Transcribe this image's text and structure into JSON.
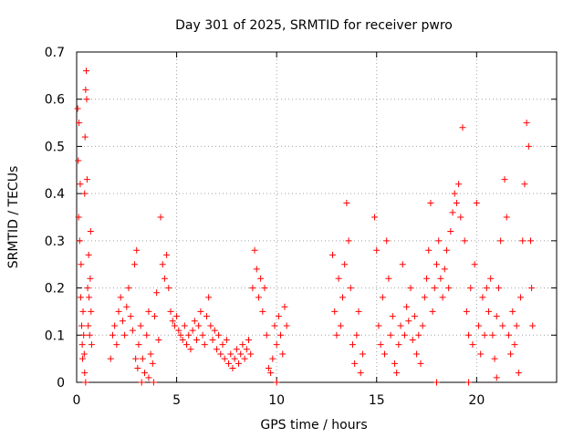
{
  "chart_data": {
    "type": "scatter",
    "title": "Day 301 of 2025, SRMTID for receiver pwro",
    "xlabel": "GPS time / hours",
    "ylabel": "SRMTID / TECUs",
    "xlim": [
      0,
      24
    ],
    "ylim": [
      0,
      0.7
    ],
    "xticks": [
      0,
      5,
      10,
      15,
      20
    ],
    "yticks": [
      0,
      0.1,
      0.2,
      0.3,
      0.4,
      0.5,
      0.6,
      0.7
    ],
    "xtick_labels": [
      "0",
      "5",
      "10",
      "15",
      "20"
    ],
    "ytick_labels": [
      "0",
      "0.1",
      "0.2",
      "0.3",
      "0.4",
      "0.5",
      "0.6",
      "0.7"
    ],
    "grid": true,
    "marker": "+",
    "color": "#ff0000",
    "series": [
      {
        "name": "SRMTID",
        "points": [
          [
            0.05,
            0.58
          ],
          [
            0.08,
            0.47
          ],
          [
            0.1,
            0.35
          ],
          [
            0.12,
            0.55
          ],
          [
            0.15,
            0.3
          ],
          [
            0.18,
            0.42
          ],
          [
            0.2,
            0.18
          ],
          [
            0.22,
            0.25
          ],
          [
            0.25,
            0.12
          ],
          [
            0.28,
            0.08
          ],
          [
            0.3,
            0.05
          ],
          [
            0.32,
            0.15
          ],
          [
            0.35,
            0.1
          ],
          [
            0.38,
            0.06
          ],
          [
            0.4,
            0.4
          ],
          [
            0.42,
            0.52
          ],
          [
            0.45,
            0.62
          ],
          [
            0.48,
            0.66
          ],
          [
            0.5,
            0.6
          ],
          [
            0.52,
            0.43
          ],
          [
            0.55,
            0.2
          ],
          [
            0.58,
            0.12
          ],
          [
            0.6,
            0.27
          ],
          [
            0.62,
            0.18
          ],
          [
            0.65,
            0.1
          ],
          [
            0.68,
            0.22
          ],
          [
            0.7,
            0.32
          ],
          [
            0.72,
            0.15
          ],
          [
            0.75,
            0.08
          ],
          [
            0.4,
            0.02
          ],
          [
            0.45,
            0.0
          ],
          [
            1.7,
            0.05
          ],
          [
            1.8,
            0.1
          ],
          [
            1.9,
            0.12
          ],
          [
            2.0,
            0.08
          ],
          [
            2.1,
            0.15
          ],
          [
            2.2,
            0.18
          ],
          [
            2.3,
            0.13
          ],
          [
            2.4,
            0.1
          ],
          [
            2.5,
            0.16
          ],
          [
            2.6,
            0.2
          ],
          [
            2.7,
            0.14
          ],
          [
            2.8,
            0.11
          ],
          [
            2.9,
            0.25
          ],
          [
            3.0,
            0.28
          ],
          [
            2.95,
            0.05
          ],
          [
            3.05,
            0.03
          ],
          [
            3.1,
            0.08
          ],
          [
            3.2,
            0.12
          ],
          [
            3.3,
            0.05
          ],
          [
            3.4,
            0.02
          ],
          [
            3.5,
            0.1
          ],
          [
            3.6,
            0.15
          ],
          [
            3.7,
            0.06
          ],
          [
            3.8,
            0.04
          ],
          [
            3.9,
            0.14
          ],
          [
            4.0,
            0.19
          ],
          [
            4.1,
            0.09
          ],
          [
            4.2,
            0.35
          ],
          [
            3.25,
            0.0
          ],
          [
            3.6,
            0.01
          ],
          [
            3.85,
            0.0
          ],
          [
            4.3,
            0.25
          ],
          [
            4.4,
            0.22
          ],
          [
            4.5,
            0.27
          ],
          [
            4.6,
            0.2
          ],
          [
            4.7,
            0.15
          ],
          [
            4.8,
            0.13
          ],
          [
            4.9,
            0.12
          ],
          [
            5.0,
            0.14
          ],
          [
            5.1,
            0.11
          ],
          [
            5.2,
            0.1
          ],
          [
            5.3,
            0.09
          ],
          [
            5.4,
            0.12
          ],
          [
            5.5,
            0.08
          ],
          [
            5.6,
            0.1
          ],
          [
            5.7,
            0.07
          ],
          [
            5.8,
            0.11
          ],
          [
            5.9,
            0.13
          ],
          [
            6.0,
            0.09
          ],
          [
            6.1,
            0.12
          ],
          [
            6.2,
            0.15
          ],
          [
            6.3,
            0.1
          ],
          [
            6.4,
            0.08
          ],
          [
            6.5,
            0.14
          ],
          [
            6.6,
            0.18
          ],
          [
            6.7,
            0.12
          ],
          [
            6.8,
            0.09
          ],
          [
            6.9,
            0.11
          ],
          [
            7.0,
            0.07
          ],
          [
            7.1,
            0.1
          ],
          [
            7.2,
            0.06
          ],
          [
            7.3,
            0.08
          ],
          [
            7.4,
            0.05
          ],
          [
            7.5,
            0.09
          ],
          [
            7.6,
            0.04
          ],
          [
            7.7,
            0.06
          ],
          [
            7.8,
            0.03
          ],
          [
            7.9,
            0.05
          ],
          [
            8.0,
            0.07
          ],
          [
            8.1,
            0.04
          ],
          [
            8.2,
            0.06
          ],
          [
            8.3,
            0.08
          ],
          [
            8.4,
            0.05
          ],
          [
            8.5,
            0.07
          ],
          [
            8.6,
            0.09
          ],
          [
            8.7,
            0.06
          ],
          [
            8.8,
            0.2
          ],
          [
            8.9,
            0.28
          ],
          [
            9.0,
            0.24
          ],
          [
            9.1,
            0.18
          ],
          [
            9.2,
            0.22
          ],
          [
            9.3,
            0.15
          ],
          [
            9.4,
            0.2
          ],
          [
            9.5,
            0.1
          ],
          [
            9.6,
            0.03
          ],
          [
            9.7,
            0.02
          ],
          [
            9.8,
            0.05
          ],
          [
            9.9,
            0.12
          ],
          [
            10.0,
            0.08
          ],
          [
            10.1,
            0.14
          ],
          [
            10.2,
            0.1
          ],
          [
            10.3,
            0.06
          ],
          [
            10.4,
            0.16
          ],
          [
            10.5,
            0.12
          ],
          [
            10.0,
            0.0
          ],
          [
            12.8,
            0.27
          ],
          [
            12.9,
            0.15
          ],
          [
            13.0,
            0.1
          ],
          [
            13.1,
            0.22
          ],
          [
            13.2,
            0.12
          ],
          [
            13.3,
            0.18
          ],
          [
            13.4,
            0.25
          ],
          [
            13.5,
            0.38
          ],
          [
            13.6,
            0.3
          ],
          [
            13.7,
            0.2
          ],
          [
            13.8,
            0.08
          ],
          [
            13.9,
            0.04
          ],
          [
            14.0,
            0.1
          ],
          [
            14.1,
            0.15
          ],
          [
            14.2,
            0.02
          ],
          [
            14.3,
            0.06
          ],
          [
            14.9,
            0.35
          ],
          [
            15.0,
            0.28
          ],
          [
            15.1,
            0.12
          ],
          [
            15.2,
            0.08
          ],
          [
            15.3,
            0.18
          ],
          [
            15.4,
            0.06
          ],
          [
            15.5,
            0.3
          ],
          [
            15.6,
            0.22
          ],
          [
            15.7,
            0.1
          ],
          [
            15.8,
            0.14
          ],
          [
            15.9,
            0.04
          ],
          [
            16.0,
            0.02
          ],
          [
            16.1,
            0.08
          ],
          [
            16.2,
            0.12
          ],
          [
            16.3,
            0.25
          ],
          [
            16.4,
            0.1
          ],
          [
            16.5,
            0.16
          ],
          [
            16.6,
            0.13
          ],
          [
            16.7,
            0.2
          ],
          [
            16.8,
            0.09
          ],
          [
            16.9,
            0.14
          ],
          [
            17.0,
            0.06
          ],
          [
            17.1,
            0.1
          ],
          [
            17.2,
            0.04
          ],
          [
            17.3,
            0.12
          ],
          [
            17.4,
            0.18
          ],
          [
            17.5,
            0.22
          ],
          [
            17.6,
            0.28
          ],
          [
            17.7,
            0.38
          ],
          [
            17.8,
            0.15
          ],
          [
            17.9,
            0.2
          ],
          [
            18.0,
            0.25
          ],
          [
            18.1,
            0.3
          ],
          [
            18.2,
            0.22
          ],
          [
            18.3,
            0.18
          ],
          [
            18.4,
            0.24
          ],
          [
            18.5,
            0.28
          ],
          [
            18.6,
            0.2
          ],
          [
            18.7,
            0.32
          ],
          [
            18.8,
            0.36
          ],
          [
            18.9,
            0.4
          ],
          [
            19.0,
            0.38
          ],
          [
            19.1,
            0.42
          ],
          [
            19.2,
            0.35
          ],
          [
            19.3,
            0.54
          ],
          [
            19.4,
            0.3
          ],
          [
            19.5,
            0.15
          ],
          [
            19.6,
            0.1
          ],
          [
            19.7,
            0.2
          ],
          [
            19.8,
            0.08
          ],
          [
            19.9,
            0.25
          ],
          [
            20.0,
            0.38
          ],
          [
            20.1,
            0.12
          ],
          [
            20.2,
            0.06
          ],
          [
            20.3,
            0.18
          ],
          [
            20.4,
            0.1
          ],
          [
            20.5,
            0.2
          ],
          [
            20.6,
            0.15
          ],
          [
            20.7,
            0.22
          ],
          [
            20.8,
            0.1
          ],
          [
            20.9,
            0.05
          ],
          [
            21.0,
            0.14
          ],
          [
            21.1,
            0.2
          ],
          [
            21.2,
            0.3
          ],
          [
            21.3,
            0.12
          ],
          [
            21.4,
            0.43
          ],
          [
            21.5,
            0.35
          ],
          [
            21.6,
            0.1
          ],
          [
            21.7,
            0.06
          ],
          [
            21.8,
            0.15
          ],
          [
            21.9,
            0.08
          ],
          [
            22.0,
            0.12
          ],
          [
            22.1,
            0.02
          ],
          [
            22.2,
            0.18
          ],
          [
            22.3,
            0.3
          ],
          [
            22.4,
            0.42
          ],
          [
            22.5,
            0.55
          ],
          [
            22.6,
            0.5
          ],
          [
            22.7,
            0.3
          ],
          [
            22.75,
            0.2
          ],
          [
            22.8,
            0.12
          ],
          [
            18.0,
            0.0
          ],
          [
            19.6,
            0.0
          ],
          [
            21.0,
            0.01
          ]
        ]
      }
    ]
  }
}
